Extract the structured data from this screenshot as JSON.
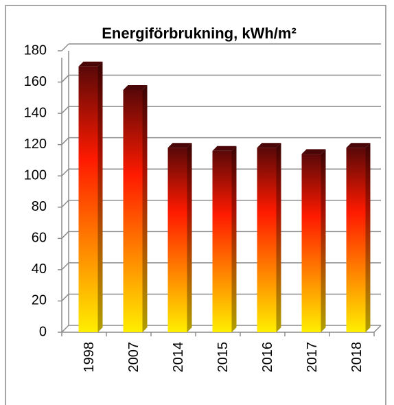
{
  "chart_data": {
    "type": "bar3d",
    "title": "Energiförbrukning, kWh/m²",
    "categories": [
      "1998",
      "2007",
      "2014",
      "2015",
      "2016",
      "2017",
      "2018"
    ],
    "values": [
      170,
      155,
      118,
      116,
      118,
      114,
      118
    ],
    "ylim": [
      0,
      180
    ],
    "yticks": [
      0,
      20,
      40,
      60,
      80,
      100,
      120,
      140,
      160,
      180
    ],
    "grid": true
  }
}
